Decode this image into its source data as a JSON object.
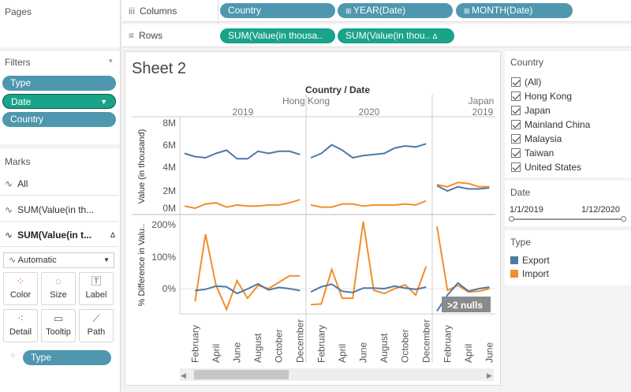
{
  "left": {
    "pages_title": "Pages",
    "filters_title": "Filters",
    "filters": [
      {
        "label": "Type",
        "color": "#4e97ae"
      },
      {
        "label": "Date",
        "color": "#19a389"
      },
      {
        "label": "Country",
        "color": "#4e97ae"
      }
    ],
    "marks_title": "Marks",
    "marks_rows": [
      "All",
      "SUM(Value(in th...",
      "SUM(Value(in t..."
    ],
    "marks_type": "Automatic",
    "mark_buttons": [
      "Color",
      "Size",
      "Label",
      "Detail",
      "Tooltip",
      "Path"
    ],
    "type_pill": "Type"
  },
  "shelves": {
    "columns_label": "Columns",
    "rows_label": "Rows",
    "columns": [
      "Country",
      "YEAR(Date)",
      "MONTH(Date)"
    ],
    "rows": [
      "SUM(Value(in thousa..",
      "SUM(Value(in thou.."
    ]
  },
  "sheet": {
    "title": "Sheet 2",
    "header_title": "Country / Date",
    "countries": [
      "Hong Kong",
      "Japan"
    ],
    "years": [
      "2019",
      "2020",
      "2019"
    ],
    "null_badge": ">2 nulls"
  },
  "chart_data": {
    "type": "line",
    "y_top_label": "Value (in thousand)",
    "y_bottom_label": "% Difference in Valu..",
    "y_top_ticks": [
      "8M",
      "6M",
      "4M",
      "2M",
      "0M"
    ],
    "y_top_range": [
      0,
      8
    ],
    "y_bottom_ticks": [
      "200%",
      "100%",
      "0%"
    ],
    "y_bottom_range": [
      -80,
      215
    ],
    "x_ticks": [
      "February",
      "April",
      "June",
      "August",
      "October",
      "December"
    ],
    "x_ticks_japan": [
      "February",
      "April",
      "June"
    ],
    "series_colors": {
      "Export": "#4e79a7",
      "Import": "#f28e2b"
    },
    "panels": [
      {
        "country": "Hong Kong",
        "year": "2019",
        "export": [
          5.1,
          4.8,
          4.7,
          5.1,
          5.4,
          4.6,
          4.6,
          5.3,
          5.1,
          5.3,
          5.3,
          5.0
        ],
        "import": [
          0.2,
          0.0,
          0.4,
          0.5,
          0.1,
          0.3,
          0.2,
          0.2,
          0.3,
          0.3,
          0.5,
          0.8
        ],
        "export_pct": [
          null,
          -6,
          -2,
          8,
          6,
          -15,
          -1,
          15,
          -4,
          4,
          0,
          -6
        ],
        "import_pct": [
          null,
          -40,
          170,
          10,
          -65,
          25,
          -30,
          10,
          0,
          20,
          40,
          40
        ]
      },
      {
        "country": "Hong Kong",
        "year": "2020",
        "export": [
          4.7,
          5.1,
          5.9,
          5.4,
          4.7,
          4.9,
          5.0,
          5.1,
          5.6,
          5.8,
          5.7,
          6.0
        ],
        "import": [
          0.3,
          0.1,
          0.1,
          0.4,
          0.4,
          0.2,
          0.3,
          0.3,
          0.3,
          0.4,
          0.3,
          0.7
        ],
        "export_pct": [
          -10,
          6,
          14,
          -8,
          -12,
          2,
          2,
          0,
          8,
          2,
          -2,
          5
        ],
        "import_pct": [
          -50,
          -48,
          60,
          -30,
          -30,
          210,
          -5,
          -15,
          0,
          12,
          -20,
          70
        ]
      },
      {
        "country": "Japan",
        "year": "2019",
        "export": [
          2.1,
          1.6,
          2.0,
          1.8,
          1.8,
          1.9
        ],
        "import": [
          2.2,
          2.0,
          2.4,
          2.3,
          2.0,
          2.0
        ],
        "export_pct": [
          -70,
          -20,
          18,
          -8,
          0,
          5
        ],
        "import_pct": [
          195,
          -5,
          10,
          -10,
          -8,
          0
        ]
      }
    ]
  },
  "legends": {
    "country_title": "Country",
    "country_items": [
      "(All)",
      "Hong Kong",
      "Japan",
      "Mainland China",
      "Malaysia",
      "Taiwan",
      "United States"
    ],
    "date_title": "Date",
    "date_min": "1/1/2019",
    "date_max": "1/12/2020",
    "type_title": "Type",
    "type_items": [
      {
        "label": "Export",
        "color": "#4e79a7"
      },
      {
        "label": "Import",
        "color": "#f28e2b"
      }
    ]
  }
}
